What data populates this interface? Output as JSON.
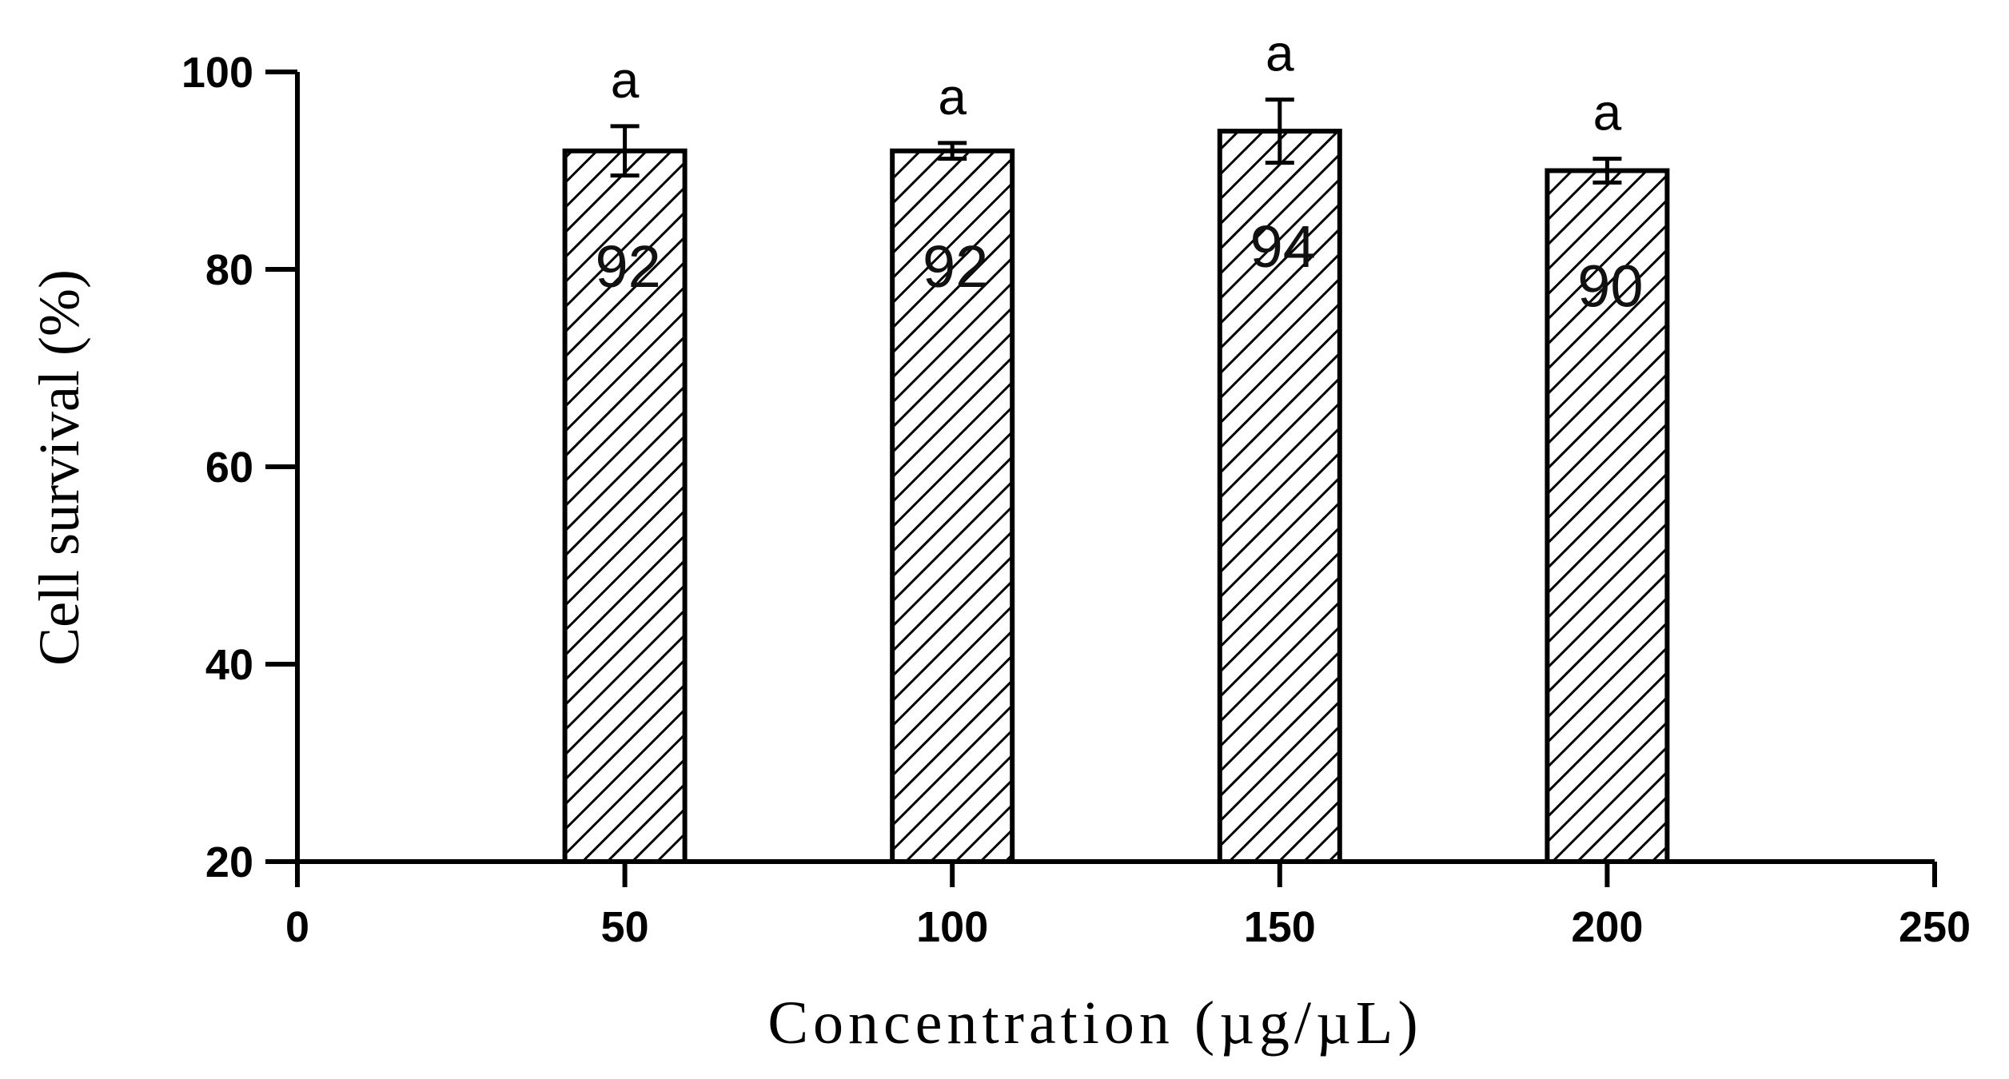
{
  "chart_data": {
    "type": "bar",
    "x": [
      50,
      100,
      150,
      200
    ],
    "values": [
      92,
      92,
      94,
      90
    ],
    "errors": [
      2.5,
      0.8,
      3.2,
      1.2
    ],
    "data_labels": [
      "92",
      "92",
      "94",
      "90"
    ],
    "significance_labels": [
      "a",
      "a",
      "a",
      "a"
    ],
    "title": "",
    "xlabel": "Concentration (µg/µL)",
    "ylabel": "Cell survival (%)",
    "xlim": [
      0,
      250
    ],
    "ylim": [
      20,
      100
    ],
    "x_ticks": [
      0,
      50,
      100,
      150,
      200,
      250
    ],
    "x_tick_labels": [
      "0",
      "50",
      "100",
      "150",
      "200",
      "250"
    ],
    "y_ticks": [
      20,
      40,
      60,
      80,
      100
    ],
    "y_tick_labels": [
      "20",
      "40",
      "60",
      "80",
      "100"
    ],
    "grid": false,
    "bar_fill": "diagonal-hatch",
    "colors": {
      "stroke": "#000000",
      "background": "#ffffff"
    }
  }
}
